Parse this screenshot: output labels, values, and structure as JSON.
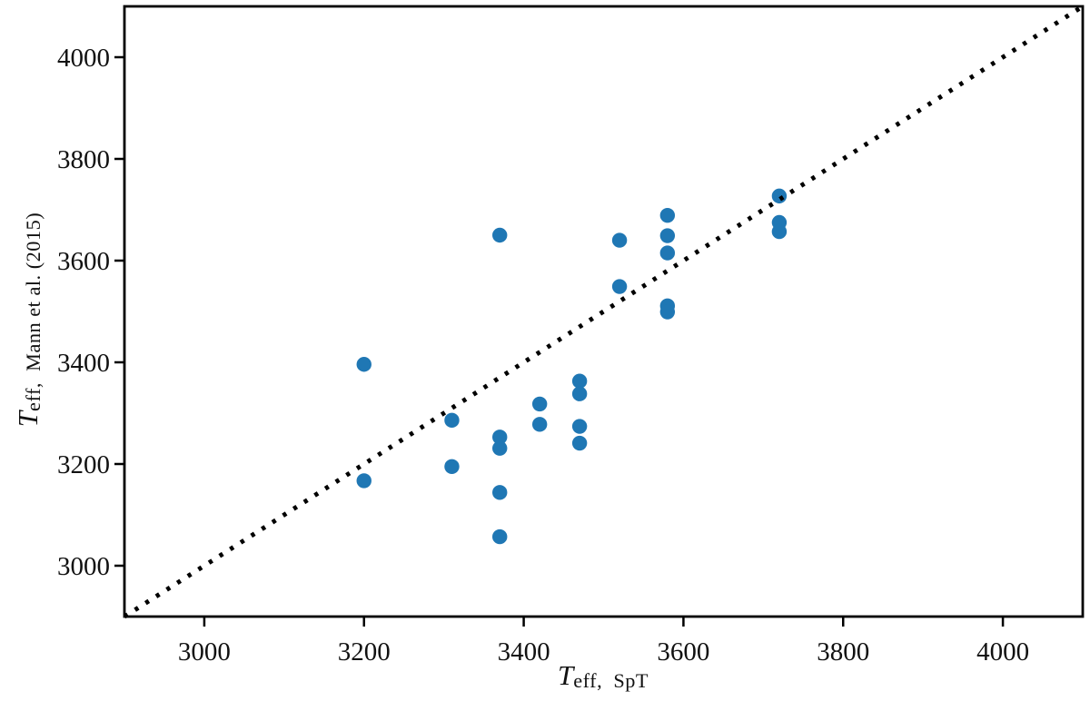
{
  "chart_data": {
    "type": "scatter",
    "title": "",
    "xlabel": {
      "main": "T",
      "sub": "eff,  SpT"
    },
    "ylabel": {
      "main": "T",
      "sub": "eff,  Mann et al. (2015)"
    },
    "xlim": [
      2900,
      4100
    ],
    "ylim": [
      2900,
      4100
    ],
    "x_ticks": [
      3000,
      3200,
      3400,
      3600,
      3800,
      4000
    ],
    "y_ticks": [
      3000,
      3200,
      3400,
      3600,
      3800,
      4000
    ],
    "grid": false,
    "legend": null,
    "marker_color": "#1f77b4",
    "axis_color": "#000000",
    "identity_line": {
      "style": "dotted",
      "from": 2900,
      "to": 4100,
      "color": "#000000"
    },
    "points": [
      {
        "x": 3200,
        "y": 3396
      },
      {
        "x": 3200,
        "y": 3167
      },
      {
        "x": 3310,
        "y": 3286
      },
      {
        "x": 3310,
        "y": 3195
      },
      {
        "x": 3370,
        "y": 3650
      },
      {
        "x": 3370,
        "y": 3253
      },
      {
        "x": 3370,
        "y": 3231
      },
      {
        "x": 3370,
        "y": 3144
      },
      {
        "x": 3370,
        "y": 3057
      },
      {
        "x": 3420,
        "y": 3318
      },
      {
        "x": 3420,
        "y": 3278
      },
      {
        "x": 3470,
        "y": 3363
      },
      {
        "x": 3470,
        "y": 3338
      },
      {
        "x": 3470,
        "y": 3274
      },
      {
        "x": 3470,
        "y": 3241
      },
      {
        "x": 3520,
        "y": 3640
      },
      {
        "x": 3520,
        "y": 3549
      },
      {
        "x": 3580,
        "y": 3689
      },
      {
        "x": 3580,
        "y": 3649
      },
      {
        "x": 3580,
        "y": 3615
      },
      {
        "x": 3580,
        "y": 3511
      },
      {
        "x": 3580,
        "y": 3499
      },
      {
        "x": 3720,
        "y": 3727
      },
      {
        "x": 3720,
        "y": 3675
      },
      {
        "x": 3720,
        "y": 3657
      }
    ]
  }
}
